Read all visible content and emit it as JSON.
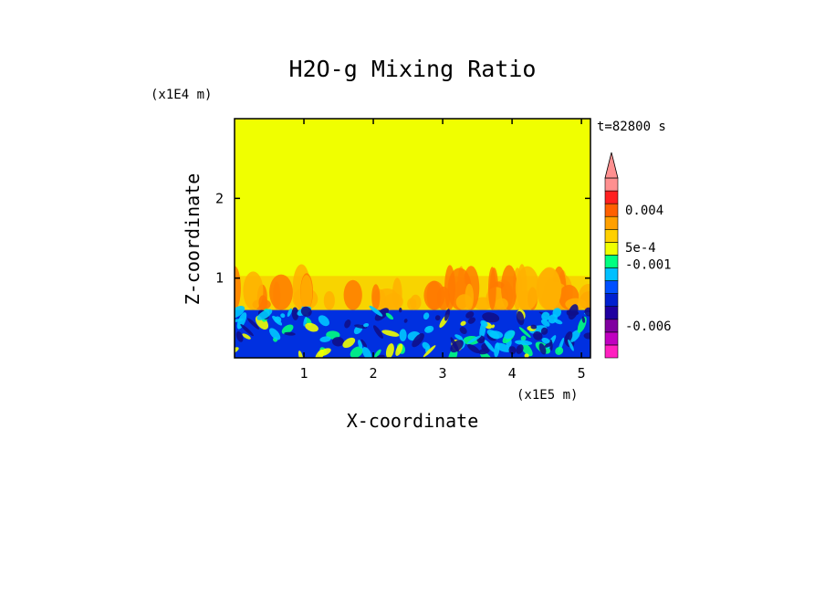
{
  "chart_data": {
    "type": "heatmap",
    "title": "H2O-g Mixing Ratio",
    "xlabel": "X-coordinate",
    "ylabel": "Z-coordinate",
    "x_unit": "(x1E5 m)",
    "y_unit": "(x1E4 m)",
    "time_label": "t=82800 s",
    "xlim": [
      0,
      5.13
    ],
    "ylim": [
      0,
      3.0
    ],
    "x_ticks": [
      "1",
      "2",
      "3",
      "4",
      "5"
    ],
    "y_ticks": [
      "1",
      "2"
    ],
    "x_tick_values": [
      1,
      2,
      3,
      4,
      5
    ],
    "y_tick_values": [
      1,
      2
    ],
    "boundary_layer_top": 0.6,
    "plume_top": 1.05,
    "colorbar": {
      "levels_colors": [
        "#ff20c0",
        "#c000c0",
        "#8000a0",
        "#2000a0",
        "#0020d0",
        "#0050ff",
        "#00c0ff",
        "#00ff80",
        "#f0ff00",
        "#ffd000",
        "#ffa000",
        "#ff6000",
        "#ff2020",
        "#ff9090"
      ],
      "labels": [
        "0.004",
        "5e-4",
        "-0.001",
        "-0.006"
      ],
      "label_level_index": [
        11.5,
        8.6,
        7.3,
        2.5
      ]
    },
    "colors": {
      "background_fill": "#f0ff00",
      "plume": "#ffb000",
      "plume_core": "#ff7a00",
      "boundary_layer": "#0030e0",
      "boundary_dark": "#10108a",
      "cyan": "#00c8ff",
      "green": "#00ff80"
    }
  }
}
